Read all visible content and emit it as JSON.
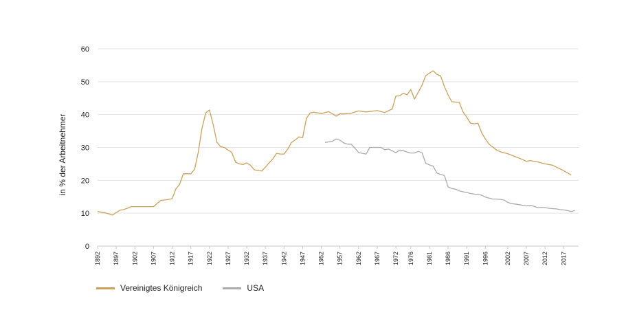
{
  "chart_data": {
    "type": "line",
    "title": "",
    "xlabel": "",
    "ylabel": "in % der Arbeitnehmer",
    "ylim": [
      0,
      60
    ],
    "xlim": [
      1892,
      2021
    ],
    "yticks": [
      0,
      10,
      20,
      30,
      40,
      50,
      60
    ],
    "xticks": [
      "1892",
      "1897",
      "1902",
      "1907",
      "1912",
      "1917",
      "1922",
      "1927",
      "1932",
      "1937",
      "1942",
      "1947",
      "1952",
      "1957",
      "1962",
      "1967",
      "1972",
      "1976",
      "1981",
      "1986",
      "1991",
      "1996",
      "2002",
      "2007",
      "2012",
      "2017"
    ],
    "grid": "horizontal",
    "legend": "bottom-left",
    "series": [
      {
        "name": "Vereinigtes Königreich",
        "color": "#C9A15A",
        "x": [
          1892,
          1893,
          1894,
          1895,
          1896,
          1897,
          1898,
          1899,
          1900,
          1901,
          1902,
          1903,
          1904,
          1905,
          1906,
          1907,
          1908,
          1909,
          1910,
          1911,
          1912,
          1913,
          1914,
          1915,
          1916,
          1917,
          1918,
          1919,
          1920,
          1921,
          1922,
          1923,
          1924,
          1925,
          1926,
          1927,
          1928,
          1929,
          1930,
          1931,
          1932,
          1933,
          1934,
          1935,
          1936,
          1937,
          1938,
          1939,
          1940,
          1941,
          1942,
          1943,
          1944,
          1945,
          1946,
          1947,
          1948,
          1949,
          1950,
          1952,
          1954,
          1955,
          1956,
          1957,
          1958,
          1960,
          1962,
          1964,
          1967,
          1969,
          1971,
          1972,
          1973,
          1974,
          1975,
          1976,
          1977,
          1979,
          1980,
          1981,
          1982,
          1983,
          1984,
          1985,
          1986,
          1987,
          1989,
          1990,
          1991,
          1992,
          1993,
          1994,
          1995,
          1996,
          1997,
          1998,
          1999,
          2000,
          2002,
          2004,
          2006,
          2007,
          2008,
          2010,
          2012,
          2014,
          2016,
          2018,
          2019
        ],
        "values": [
          10.5,
          10.3,
          10.1,
          9.8,
          9.4,
          10.2,
          10.9,
          11.1,
          11.5,
          12.0,
          12.0,
          12.0,
          12.0,
          12.0,
          12.0,
          12.0,
          13.0,
          13.9,
          14.0,
          14.2,
          14.4,
          17.4,
          18.8,
          22.0,
          22.0,
          22.0,
          23.3,
          28.5,
          35.8,
          40.5,
          41.4,
          37.0,
          31.6,
          30.2,
          30.0,
          29.2,
          28.5,
          25.5,
          25.0,
          24.8,
          25.3,
          24.6,
          23.2,
          23.0,
          22.8,
          24.0,
          25.3,
          26.5,
          28.2,
          28.0,
          28.0,
          29.5,
          31.5,
          32.3,
          33.2,
          33.0,
          38.8,
          40.5,
          40.7,
          40.3,
          40.9,
          40.2,
          39.5,
          40.2,
          40.2,
          40.4,
          41.1,
          40.8,
          41.2,
          40.6,
          41.7,
          45.6,
          45.7,
          46.5,
          46.0,
          47.6,
          44.7,
          48.9,
          51.8,
          52.6,
          53.3,
          52.2,
          51.8,
          48.5,
          46.0,
          43.9,
          43.7,
          40.8,
          39.2,
          37.4,
          37.2,
          37.4,
          34.5,
          32.6,
          31.0,
          30.1,
          29.2,
          28.7,
          28.1,
          27.2,
          26.3,
          25.8,
          26.0,
          25.6,
          25.0,
          24.6,
          23.5,
          22.3,
          21.6
        ]
      },
      {
        "name": "USA",
        "color": "#AAAAAA",
        "x": [
          1953,
          1954,
          1955,
          1956,
          1957,
          1958,
          1959,
          1960,
          1961,
          1962,
          1963,
          1964,
          1965,
          1966,
          1967,
          1968,
          1969,
          1970,
          1971,
          1972,
          1973,
          1974,
          1975,
          1976,
          1977,
          1978,
          1979,
          1980,
          1981,
          1982,
          1983,
          1984,
          1985,
          1986,
          1987,
          1988,
          1989,
          1990,
          1991,
          1992,
          1993,
          1994,
          1995,
          1996,
          1997,
          1998,
          1999,
          2000,
          2001,
          2002,
          2003,
          2004,
          2005,
          2006,
          2007,
          2008,
          2009,
          2010,
          2011,
          2012,
          2013,
          2014,
          2015,
          2016,
          2017,
          2018,
          2019,
          2020
        ],
        "values": [
          31.5,
          31.7,
          31.9,
          32.6,
          32.2,
          31.4,
          31.0,
          31.0,
          29.8,
          28.5,
          28.2,
          28.0,
          30.0,
          30.0,
          30.0,
          30.0,
          29.3,
          29.5,
          29.0,
          28.4,
          29.2,
          29.0,
          28.6,
          28.3,
          28.3,
          28.8,
          28.4,
          25.2,
          24.7,
          24.3,
          22.2,
          21.8,
          21.5,
          18.0,
          17.5,
          17.3,
          16.8,
          16.5,
          16.3,
          16.0,
          15.8,
          15.7,
          15.5,
          14.9,
          14.6,
          14.3,
          14.3,
          14.2,
          14.0,
          13.3,
          12.9,
          12.8,
          12.6,
          12.4,
          12.2,
          12.4,
          12.1,
          11.7,
          11.8,
          11.7,
          11.5,
          11.4,
          11.3,
          11.1,
          11.0,
          10.8,
          10.5,
          10.8
        ]
      }
    ]
  }
}
